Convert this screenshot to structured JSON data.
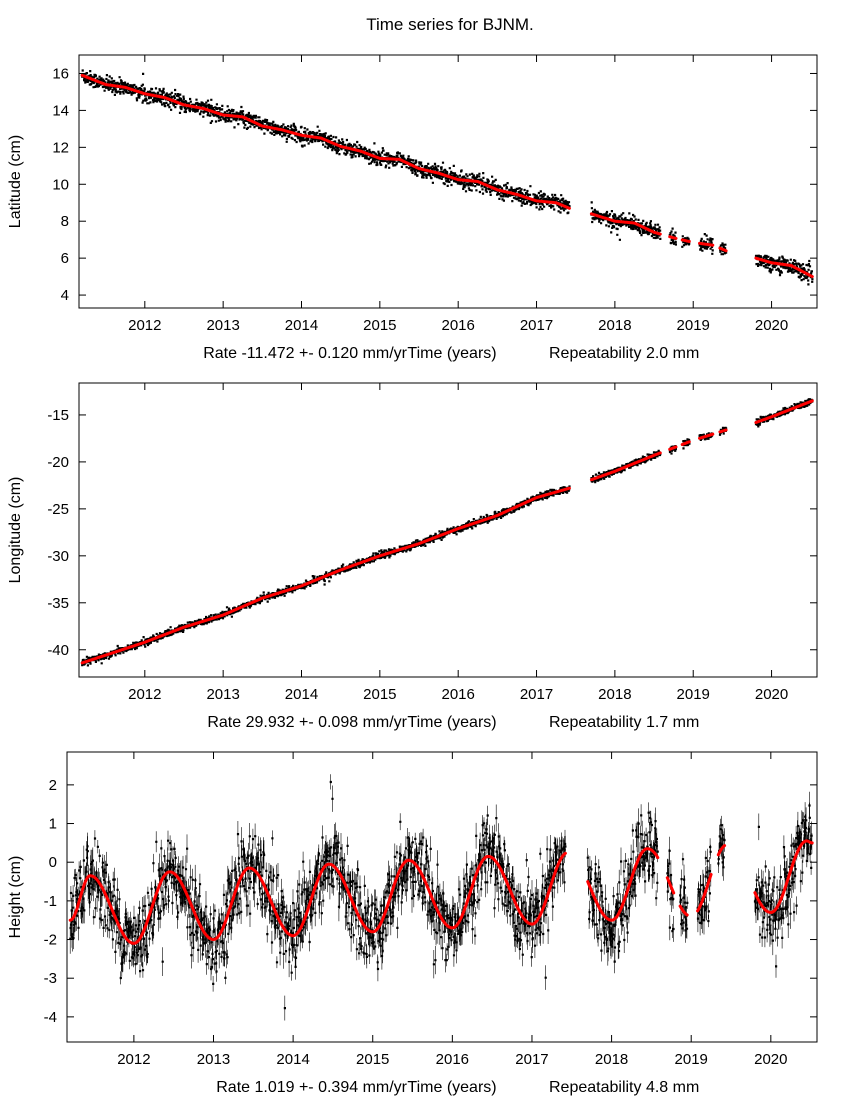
{
  "title": "Time series for BJNM.",
  "colors": {
    "observations": "#000000",
    "fit": "#ff0000",
    "frame": "#000000"
  },
  "chart_data": [
    {
      "type": "scatter",
      "ylabel": "Latitude (cm)",
      "xlabel": "Time (years)",
      "rate_text": "Rate -11.472 +- 0.120 mm/yr",
      "repeat_text": "Repeatability 2.0 mm",
      "xlim": [
        2011.16,
        2020.58
      ],
      "ylim": [
        3.3,
        17.0
      ],
      "xticks": [
        2012,
        2013,
        2014,
        2015,
        2016,
        2017,
        2018,
        2019,
        2020
      ],
      "yticks": [
        4,
        6,
        8,
        10,
        12,
        14,
        16
      ],
      "repeatability_cm": 0.2,
      "obs_spans": [
        [
          2011.2,
          2017.42
        ],
        [
          2017.7,
          2018.58
        ],
        [
          2018.7,
          2018.78
        ],
        [
          2018.86,
          2018.95
        ],
        [
          2019.08,
          2019.25
        ],
        [
          2019.34,
          2019.42
        ],
        [
          2019.8,
          2020.52
        ]
      ],
      "fit": {
        "x": [
          2011.2,
          2011.5,
          2011.75,
          2012,
          2012.25,
          2012.5,
          2012.75,
          2013,
          2013.25,
          2013.5,
          2013.75,
          2014,
          2014.25,
          2014.5,
          2014.75,
          2015,
          2015.25,
          2015.5,
          2015.75,
          2016,
          2016.25,
          2016.5,
          2016.75,
          2017,
          2017.25,
          2017.42,
          2017.7,
          2018,
          2018.25,
          2018.5,
          2018.75,
          2019,
          2019.25,
          2019.42,
          2019.8,
          2020,
          2020.25,
          2020.52
        ],
        "y": [
          15.9,
          15.4,
          15.25,
          14.9,
          14.7,
          14.3,
          14.1,
          13.75,
          13.65,
          13.15,
          12.95,
          12.65,
          12.5,
          12.05,
          11.8,
          11.4,
          11.35,
          10.85,
          10.6,
          10.25,
          10.15,
          9.7,
          9.45,
          9.1,
          9.0,
          8.7,
          8.4,
          8.0,
          7.9,
          7.4,
          7.1,
          6.85,
          6.7,
          6.4,
          6.0,
          5.75,
          5.6,
          5.0
        ]
      }
    },
    {
      "type": "scatter",
      "ylabel": "Longitude (cm)",
      "xlabel": "Time (years)",
      "rate_text": "Rate 29.932 +- 0.098 mm/yr",
      "repeat_text": "Repeatability 1.7 mm",
      "xlim": [
        2011.16,
        2020.58
      ],
      "ylim": [
        -42.9,
        -11.6
      ],
      "xticks": [
        2012,
        2013,
        2014,
        2015,
        2016,
        2017,
        2018,
        2019,
        2020
      ],
      "yticks": [
        -40,
        -35,
        -30,
        -25,
        -20,
        -15
      ],
      "repeatability_cm": 0.17,
      "obs_spans": [
        [
          2011.2,
          2017.42
        ],
        [
          2017.7,
          2018.58
        ],
        [
          2018.7,
          2018.78
        ],
        [
          2018.86,
          2018.95
        ],
        [
          2019.08,
          2019.25
        ],
        [
          2019.34,
          2019.42
        ],
        [
          2019.8,
          2020.52
        ]
      ],
      "fit": {
        "x": [
          2011.2,
          2012,
          2012.5,
          2013,
          2013.5,
          2014,
          2014.5,
          2015,
          2015.5,
          2016,
          2016.5,
          2017,
          2017.42,
          2017.7,
          2018,
          2018.5,
          2019,
          2019.42,
          2019.8,
          2020,
          2020.52
        ],
        "y": [
          -41.4,
          -39.2,
          -37.6,
          -36.3,
          -34.5,
          -33.2,
          -31.5,
          -30.0,
          -28.7,
          -27.1,
          -25.7,
          -23.8,
          -22.8,
          -21.9,
          -21.0,
          -19.3,
          -17.7,
          -16.6,
          -15.8,
          -15.2,
          -13.5
        ]
      }
    },
    {
      "type": "scatter",
      "ylabel": "Height (cm)",
      "xlabel": "Time (years)",
      "rate_text": "Rate 1.019 +- 0.394 mm/yr",
      "repeat_text": "Repeatability 4.8 mm",
      "xlim": [
        2011.16,
        2020.58
      ],
      "ylim": [
        -4.65,
        2.85
      ],
      "xticks": [
        2012,
        2013,
        2014,
        2015,
        2016,
        2017,
        2018,
        2019,
        2020
      ],
      "yticks": [
        -4,
        -3,
        -2,
        -1,
        0,
        1,
        2
      ],
      "repeatability_cm": 0.48,
      "error_bars": true,
      "obs_spans": [
        [
          2011.2,
          2017.42
        ],
        [
          2017.7,
          2018.58
        ],
        [
          2018.7,
          2018.78
        ],
        [
          2018.86,
          2018.95
        ],
        [
          2019.08,
          2019.25
        ],
        [
          2019.34,
          2019.42
        ],
        [
          2019.8,
          2020.52
        ]
      ],
      "fit": {
        "x": [
          2011.2,
          2011.45,
          2012.0,
          2012.45,
          2013.0,
          2013.45,
          2014.0,
          2014.45,
          2015.0,
          2015.45,
          2016.0,
          2016.45,
          2017.0,
          2017.45,
          2018.0,
          2018.45,
          2019.0,
          2019.45,
          2020.0,
          2020.45,
          2020.52
        ],
        "y": [
          -1.5,
          -0.35,
          -2.1,
          -0.25,
          -2.0,
          -0.15,
          -1.9,
          -0.05,
          -1.8,
          0.05,
          -1.7,
          0.15,
          -1.6,
          0.25,
          -1.5,
          0.35,
          -1.4,
          0.45,
          -1.3,
          0.55,
          0.5
        ]
      }
    }
  ]
}
